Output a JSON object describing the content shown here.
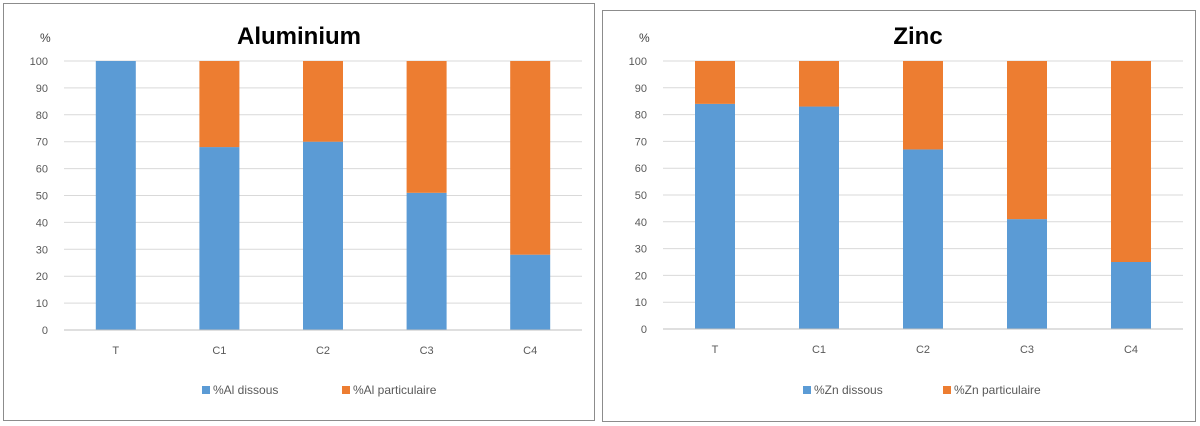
{
  "chart_data": [
    {
      "type": "bar",
      "stacked": true,
      "title": "Aluminium",
      "ylabel": "%",
      "ylim": [
        0,
        100
      ],
      "yticks": [
        0,
        10,
        20,
        30,
        40,
        50,
        60,
        70,
        80,
        90,
        100
      ],
      "categories": [
        "T",
        "C1",
        "C2",
        "C3",
        "C4"
      ],
      "series": [
        {
          "name": "%Al dissous",
          "color": "#5b9bd5",
          "values": [
            100,
            68,
            70,
            51,
            28
          ]
        },
        {
          "name": "%Al particulaire",
          "color": "#ed7d31",
          "values": [
            0,
            32,
            30,
            49,
            72
          ]
        }
      ],
      "grid": true,
      "legend": "bottom"
    },
    {
      "type": "bar",
      "stacked": true,
      "title": "Zinc",
      "ylabel": "%",
      "ylim": [
        0,
        100
      ],
      "yticks": [
        0,
        10,
        20,
        30,
        40,
        50,
        60,
        70,
        80,
        90,
        100
      ],
      "categories": [
        "T",
        "C1",
        "C2",
        "C3",
        "C4"
      ],
      "series": [
        {
          "name": "%Zn dissous",
          "color": "#5b9bd5",
          "values": [
            84,
            83,
            67,
            41,
            25
          ]
        },
        {
          "name": "%Zn particulaire",
          "color": "#ed7d31",
          "values": [
            16,
            17,
            33,
            59,
            75
          ]
        }
      ],
      "grid": true,
      "legend": "bottom"
    }
  ]
}
